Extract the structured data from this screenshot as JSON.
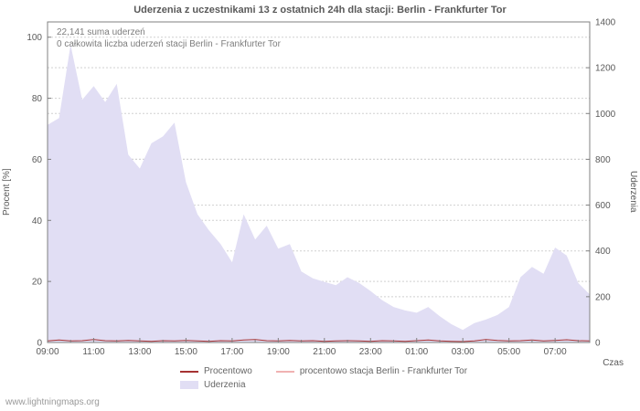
{
  "title": "Uderzenia z uczestnikami 13 z ostatnich 24h dla stacji: Berlin - Frankfurter Tor",
  "annotations": {
    "line1": "22,141 suma uderzeń",
    "line2": "0 całkowita liczba uderzeń stacji Berlin - Frankfurter Tor"
  },
  "axes": {
    "left_label": "Procent [%]",
    "right_label": "Uderzenia",
    "x_label": "Czas"
  },
  "legend": [
    {
      "label": "Procentowo",
      "type": "line",
      "color": "#a63333"
    },
    {
      "label": "procentowo stacja Berlin - Frankfurter Tor",
      "type": "line",
      "color": "#f0b2b2"
    },
    {
      "label": "Uderzenia",
      "type": "area",
      "color": "#e1def4"
    }
  ],
  "watermark": "www.lightningmaps.org",
  "colors": {
    "area_fill": "#e1def4",
    "percent_line": "#a63333",
    "station_line": "#f0b2b2",
    "frame": "#808080",
    "grid": "#d0d0d0",
    "text": "#595959"
  },
  "chart_data": {
    "type": "area",
    "title": "Uderzenia z uczestnikami 13 z ostatnich 24h dla stacji: Berlin - Frankfurter Tor",
    "xlabel": "Czas",
    "x": [
      "09:00",
      "09:30",
      "10:00",
      "10:30",
      "11:00",
      "11:30",
      "12:00",
      "12:30",
      "13:00",
      "13:30",
      "14:00",
      "14:30",
      "15:00",
      "15:30",
      "16:00",
      "16:30",
      "17:00",
      "17:30",
      "18:00",
      "18:30",
      "19:00",
      "19:30",
      "20:00",
      "20:30",
      "21:00",
      "21:30",
      "22:00",
      "22:30",
      "23:00",
      "23:30",
      "00:00",
      "00:30",
      "01:00",
      "01:30",
      "02:00",
      "02:30",
      "03:00",
      "03:30",
      "04:00",
      "04:30",
      "05:00",
      "05:30",
      "06:00",
      "06:30",
      "07:00",
      "07:30",
      "08:00",
      "08:30"
    ],
    "left_axis": {
      "label": "Procent [%]",
      "range": [
        0,
        105
      ],
      "ticks": [
        0,
        20,
        40,
        60,
        80,
        100
      ]
    },
    "right_axis": {
      "label": "Uderzenia",
      "range": [
        0,
        1400
      ],
      "ticks": [
        0,
        200,
        400,
        600,
        800,
        1000,
        1200,
        1400
      ]
    },
    "grid": true,
    "legend_position": "bottom",
    "series": [
      {
        "name": "Uderzenia",
        "axis": "right",
        "type": "area",
        "color": "#e1def4",
        "values": [
          950,
          980,
          1300,
          1060,
          1120,
          1050,
          1130,
          820,
          760,
          870,
          900,
          960,
          700,
          560,
          490,
          430,
          350,
          560,
          450,
          510,
          410,
          430,
          310,
          280,
          265,
          250,
          285,
          260,
          225,
          185,
          155,
          140,
          130,
          155,
          115,
          80,
          55,
          85,
          100,
          120,
          155,
          285,
          330,
          300,
          415,
          380,
          260,
          210
        ]
      },
      {
        "name": "Procentowo",
        "axis": "left",
        "type": "line",
        "color": "#a63333",
        "values": [
          0.5,
          0.8,
          0.5,
          0.6,
          1.0,
          0.6,
          0.5,
          0.7,
          0.5,
          0.4,
          0.6,
          0.5,
          0.7,
          0.5,
          0.4,
          0.6,
          0.5,
          0.8,
          1.0,
          0.6,
          0.5,
          0.7,
          0.5,
          0.6,
          0.4,
          0.5,
          0.6,
          0.5,
          0.4,
          0.6,
          0.5,
          0.4,
          0.6,
          0.8,
          0.5,
          0.4,
          0.3,
          0.5,
          1.0,
          0.7,
          0.5,
          0.6,
          0.8,
          0.5,
          0.7,
          0.9,
          0.6,
          0.5
        ]
      },
      {
        "name": "procentowo stacja Berlin - Frankfurter Tor",
        "axis": "left",
        "type": "line",
        "color": "#f0b2b2",
        "values": [
          0,
          0,
          0,
          0,
          0,
          0,
          0,
          0,
          0,
          0,
          0,
          0,
          0,
          0,
          0,
          0,
          0,
          0,
          0,
          0,
          0,
          0,
          0,
          0,
          0,
          0,
          0,
          0,
          0,
          0,
          0,
          0,
          0,
          0,
          0,
          0,
          0,
          0,
          0,
          0,
          0,
          0,
          0,
          0,
          0,
          0,
          0,
          0
        ]
      }
    ]
  }
}
